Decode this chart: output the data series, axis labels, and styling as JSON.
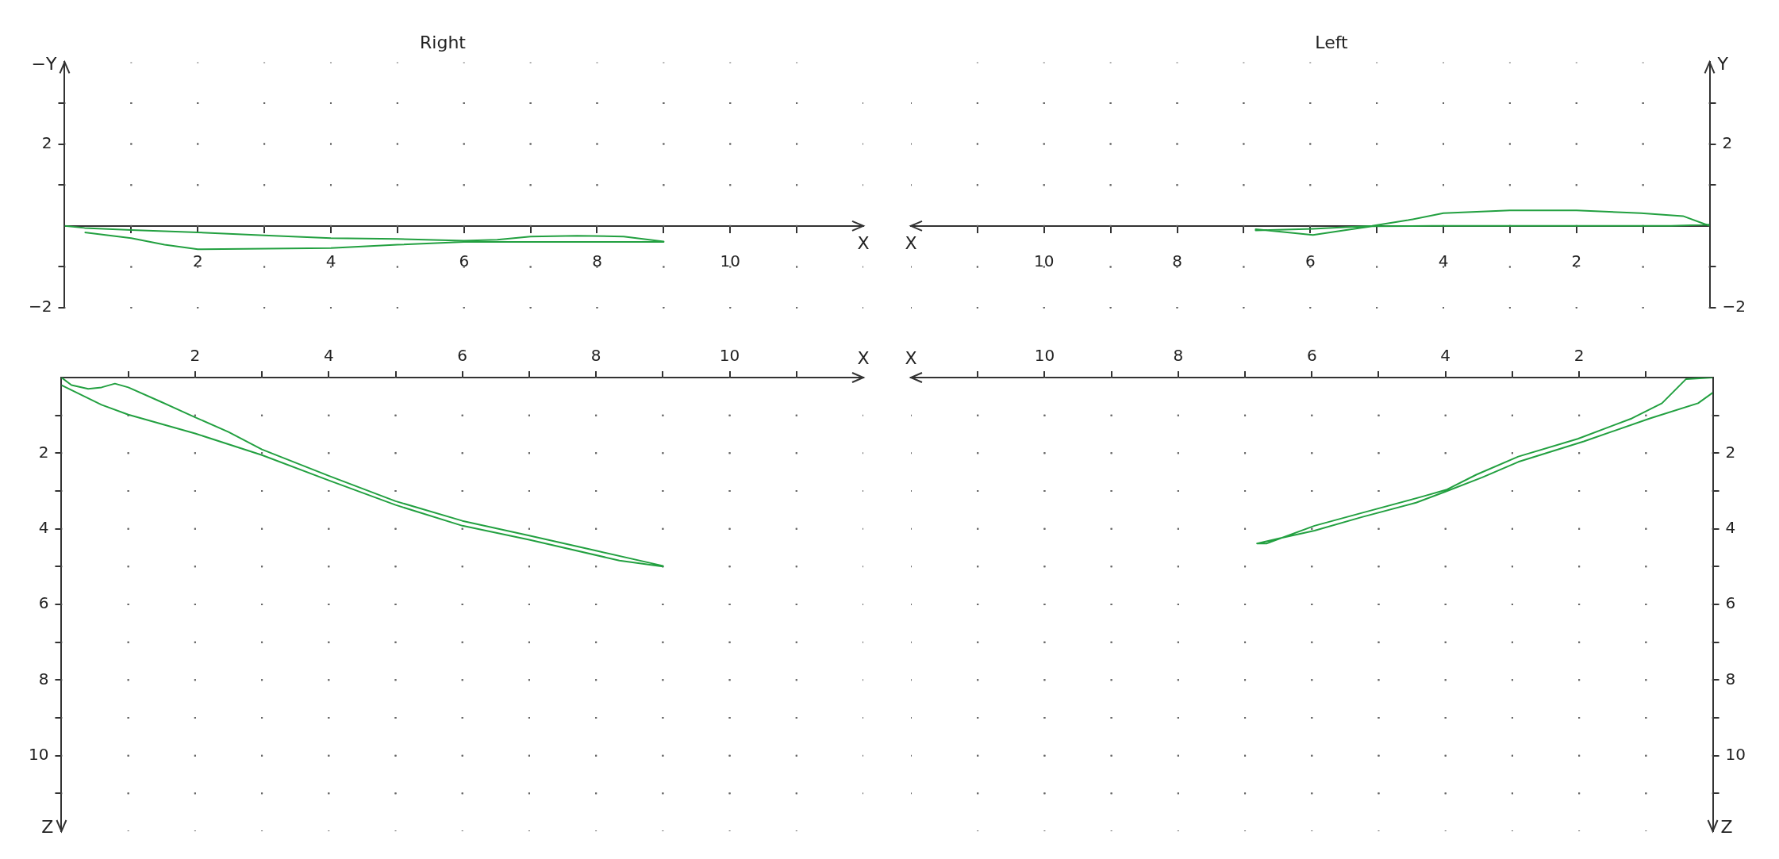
{
  "chart_data": [
    {
      "type": "line",
      "title": "Right",
      "xlabel": "X",
      "ylabel": "−Y",
      "xlim": [
        0,
        12
      ],
      "ylim": [
        -2,
        4
      ],
      "grid": true,
      "xticks": [
        {
          "value": 1,
          "label": null
        },
        2,
        {
          "value": 3,
          "label": null
        },
        4,
        {
          "value": 5,
          "label": null
        },
        6,
        {
          "value": 7,
          "label": null
        },
        8,
        {
          "value": 9,
          "label": null
        },
        10,
        {
          "value": 11,
          "label": null
        }
      ],
      "yticks": [
        {
          "value": -2,
          "label": "−2"
        },
        {
          "value": -1,
          "label": null
        },
        {
          "value": 1,
          "label": null
        },
        2,
        {
          "value": 3,
          "label": null
        }
      ],
      "series": [
        {
          "color": "#22a040",
          "x": [
            0,
            0.3,
            1,
            2,
            3,
            4,
            5,
            6,
            6.5,
            7,
            7.7,
            8.4,
            9,
            9,
            7.65,
            6,
            5,
            4,
            2,
            1.5,
            1,
            0.3
          ],
          "values": [
            0,
            -0.05,
            -0.1,
            -0.16,
            -0.23,
            -0.3,
            -0.32,
            -0.36,
            -0.34,
            -0.26,
            -0.24,
            -0.26,
            -0.38,
            -0.39,
            -0.39,
            -0.39,
            -0.46,
            -0.54,
            -0.57,
            -0.46,
            -0.3,
            -0.16
          ]
        }
      ]
    },
    {
      "type": "line",
      "title": "Left",
      "xlabel": "X",
      "ylabel": "Y",
      "xlim": [
        12,
        0
      ],
      "ylim": [
        -2,
        4
      ],
      "grid": true,
      "xticks": [
        {
          "value": 1,
          "label": null
        },
        2,
        {
          "value": 3,
          "label": null
        },
        4,
        {
          "value": 5,
          "label": null
        },
        6,
        {
          "value": 7,
          "label": null
        },
        8,
        {
          "value": 9,
          "label": null
        },
        10,
        {
          "value": 11,
          "label": null
        }
      ],
      "yticks": [
        {
          "value": -2,
          "label": "−2"
        },
        {
          "value": -1,
          "label": null
        },
        {
          "value": 1,
          "label": null
        },
        2,
        {
          "value": 3,
          "label": null
        }
      ],
      "series": [
        {
          "color": "#22a040",
          "x": [
            0,
            0.4,
            1.03,
            2,
            3,
            4,
            4.53,
            5.07,
            5.96,
            6.82,
            6.82,
            5.96,
            5.5,
            5.07,
            4.17,
            2.38,
            0.58,
            0
          ],
          "values": [
            0,
            0.24,
            0.31,
            0.38,
            0.38,
            0.31,
            0.14,
            0,
            -0.07,
            -0.11,
            -0.08,
            -0.22,
            -0.11,
            -0.01,
            0,
            0,
            0,
            0.03
          ]
        }
      ]
    },
    {
      "type": "line",
      "xlabel": "X",
      "ylabel": "Z",
      "xlim": [
        0,
        12
      ],
      "ylim": [
        12,
        0
      ],
      "grid": true,
      "xticks": [
        {
          "value": 1,
          "label": null
        },
        2,
        {
          "value": 3,
          "label": null
        },
        4,
        {
          "value": 5,
          "label": null
        },
        6,
        {
          "value": 7,
          "label": null
        },
        8,
        {
          "value": 9,
          "label": null
        },
        10,
        {
          "value": 11,
          "label": null
        }
      ],
      "yticks": [
        {
          "value": 1,
          "label": null
        },
        2,
        {
          "value": 3,
          "label": null
        },
        4,
        {
          "value": 5,
          "label": null
        },
        6,
        {
          "value": 7,
          "label": null
        },
        8,
        {
          "value": 9,
          "label": null
        },
        10,
        {
          "value": 11,
          "label": null
        }
      ],
      "series": [
        {
          "color": "#22a040",
          "x": [
            0,
            0.15,
            0.4,
            0.6,
            0.8,
            1,
            1.5,
            2,
            2.5,
            3,
            4,
            5,
            6,
            7,
            8,
            9,
            9,
            8.35,
            7,
            6,
            5,
            4,
            3,
            2,
            1,
            0.6,
            0
          ],
          "values": [
            0,
            0.2,
            0.3,
            0.26,
            0.16,
            0.26,
            0.65,
            1.05,
            1.44,
            1.9,
            2.6,
            3.27,
            3.79,
            4.18,
            4.58,
            4.98,
            5.0,
            4.84,
            4.29,
            3.92,
            3.37,
            2.72,
            2.05,
            1.48,
            0.98,
            0.72,
            0.2
          ]
        }
      ]
    },
    {
      "type": "line",
      "xlabel": "X",
      "ylabel": "Z",
      "xlim": [
        12,
        0
      ],
      "ylim": [
        12,
        0
      ],
      "grid": true,
      "xticks": [
        {
          "value": 1,
          "label": null
        },
        2,
        {
          "value": 3,
          "label": null
        },
        4,
        {
          "value": 5,
          "label": null
        },
        6,
        {
          "value": 7,
          "label": null
        },
        8,
        {
          "value": 9,
          "label": null
        },
        10,
        {
          "value": 11,
          "label": null
        }
      ],
      "yticks": [
        {
          "value": 1,
          "label": null
        },
        2,
        {
          "value": 3,
          "label": null
        },
        4,
        {
          "value": 5,
          "label": null
        },
        6,
        {
          "value": 7,
          "label": null
        },
        8,
        {
          "value": 9,
          "label": null
        },
        10,
        {
          "value": 11,
          "label": null
        }
      ],
      "series": [
        {
          "color": "#22a040",
          "x": [
            0,
            0.4,
            0.76,
            1.21,
            2.02,
            2.91,
            3.54,
            3.99,
            4.35,
            5.25,
            5.96,
            6.68,
            6.82,
            6.5,
            5.96,
            5.25,
            4.44,
            3.99,
            3.45,
            2.91,
            1.93,
            0.94,
            0.22,
            0
          ],
          "values": [
            0,
            0.04,
            0.68,
            1.08,
            1.62,
            2.09,
            2.57,
            2.97,
            3.15,
            3.58,
            3.92,
            4.39,
            4.39,
            4.26,
            4.05,
            3.69,
            3.31,
            3.01,
            2.64,
            2.23,
            1.69,
            1.08,
            0.68,
            0.4
          ]
        }
      ]
    }
  ]
}
